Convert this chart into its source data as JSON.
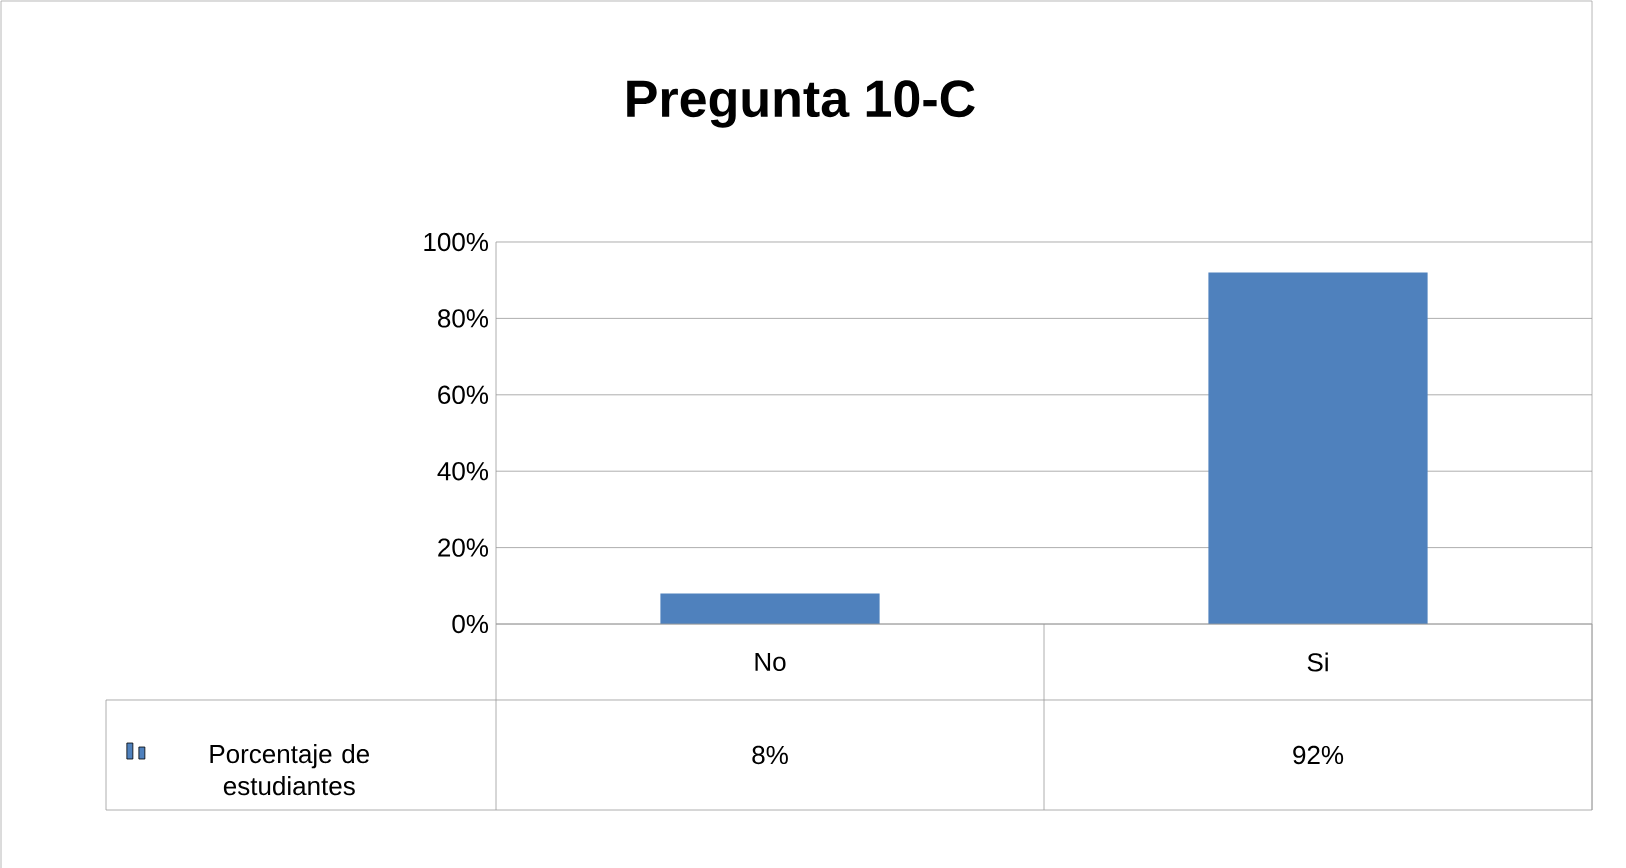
{
  "chart_data": {
    "type": "bar",
    "title": "Pregunta 10-C",
    "categories": [
      "No",
      "Si"
    ],
    "series": [
      {
        "name": "Porcentaje de estudiantes",
        "color": "#4f81bd",
        "values": [
          8,
          92
        ],
        "value_labels": [
          "8%",
          "92%"
        ]
      }
    ],
    "ylim": [
      0,
      100
    ],
    "yticks": [
      {
        "value": 0,
        "label": "0%"
      },
      {
        "value": 20,
        "label": "20%"
      },
      {
        "value": 40,
        "label": "40%"
      },
      {
        "value": 60,
        "label": "60%"
      },
      {
        "value": 80,
        "label": "80%"
      },
      {
        "value": 100,
        "label": "100%"
      }
    ],
    "grid": "y",
    "legend": "bottom left"
  }
}
